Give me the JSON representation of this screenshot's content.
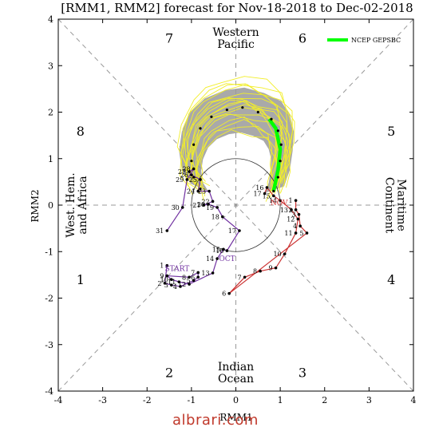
{
  "chart_data": {
    "type": "scatter",
    "title": "[RMM1, RMM2] forecast for Nov-18-2018 to Dec-02-2018",
    "xlabel": "RMM1",
    "ylabel": "RMM2",
    "xlim": [
      -4,
      4
    ],
    "ylim": [
      -4,
      4
    ],
    "ticks": [
      "-4",
      "-3",
      "-2",
      "-1",
      "0",
      "1",
      "2",
      "3",
      "4"
    ],
    "grid": false,
    "legend": {
      "position": "top-right",
      "label": "NCEP GEPSBC",
      "color": "#00ff00"
    },
    "phase_numbers": [
      {
        "label": "1",
        "x": -3.5,
        "y": -1.6
      },
      {
        "label": "2",
        "x": -1.5,
        "y": -3.6
      },
      {
        "label": "3",
        "x": 1.5,
        "y": -3.6
      },
      {
        "label": "4",
        "x": 3.5,
        "y": -1.6
      },
      {
        "label": "5",
        "x": 3.5,
        "y": 1.6
      },
      {
        "label": "6",
        "x": 1.5,
        "y": 3.6
      },
      {
        "label": "7",
        "x": -1.5,
        "y": 3.6
      },
      {
        "label": "8",
        "x": -3.5,
        "y": 1.6
      }
    ],
    "region_labels": [
      {
        "lines": [
          "Western",
          "Pacific"
        ],
        "x": 0,
        "y": 3.6,
        "rotate": 0
      },
      {
        "lines": [
          "Indian",
          "Ocean"
        ],
        "x": 0,
        "y": -3.6,
        "rotate": 0
      },
      {
        "lines": [
          "West. Hem.",
          "and Africa"
        ],
        "x": -3.6,
        "y": 0,
        "rotate": -90
      },
      {
        "lines": [
          "Maritime",
          "Continent"
        ],
        "x": 3.6,
        "y": 0,
        "rotate": 90
      }
    ],
    "month_labels": [
      {
        "label": "START",
        "x": -1.6,
        "y": -1.42,
        "color": "#7030a0"
      },
      {
        "label": "OCT",
        "x": -0.38,
        "y": -1.2,
        "color": "#7030a0"
      },
      {
        "label": "NOV",
        "x": 0.78,
        "y": 0.0,
        "color": "#cc3333"
      }
    ],
    "series": [
      {
        "name": "October observed",
        "color": "#7030a0",
        "points": [
          {
            "day": "1",
            "x": -1.55,
            "y": -1.3
          },
          {
            "day": "2",
            "x": -1.6,
            "y": -1.68
          },
          {
            "day": "3",
            "x": -1.45,
            "y": -1.72
          },
          {
            "day": "4",
            "x": -1.25,
            "y": -1.75
          },
          {
            "day": "5",
            "x": -0.95,
            "y": -1.62
          },
          {
            "day": "6",
            "x": -0.85,
            "y": -1.55
          },
          {
            "day": "7",
            "x": -0.85,
            "y": -1.45
          },
          {
            "day": "8",
            "x": -1.05,
            "y": -1.55
          },
          {
            "day": "9",
            "x": -1.55,
            "y": -1.52
          },
          {
            "day": "10",
            "x": -1.45,
            "y": -1.6
          },
          {
            "day": "11",
            "x": -1.28,
            "y": -1.65
          },
          {
            "day": "12",
            "x": -1.05,
            "y": -1.7
          },
          {
            "day": "13",
            "x": -0.52,
            "y": -1.46
          },
          {
            "day": "14",
            "x": -0.42,
            "y": -1.15
          },
          {
            "day": "15",
            "x": -0.28,
            "y": -0.95
          },
          {
            "day": "16",
            "x": -0.2,
            "y": -0.98
          },
          {
            "day": "17",
            "x": 0.08,
            "y": -0.55
          },
          {
            "day": "18",
            "x": -0.3,
            "y": -0.25
          },
          {
            "day": "19",
            "x": -0.42,
            "y": -0.05
          },
          {
            "day": "20",
            "x": -0.62,
            "y": 0.02
          },
          {
            "day": "21",
            "x": -0.72,
            "y": 0.0
          },
          {
            "day": "22",
            "x": -0.52,
            "y": 0.08
          },
          {
            "day": "23",
            "x": -0.6,
            "y": 0.3
          },
          {
            "day": "24",
            "x": -0.85,
            "y": 0.3
          },
          {
            "day": "25",
            "x": -0.8,
            "y": 0.55
          },
          {
            "day": "26",
            "x": -1.0,
            "y": 0.65
          },
          {
            "day": "27",
            "x": -1.05,
            "y": 0.72
          },
          {
            "day": "28",
            "x": -0.95,
            "y": 0.78
          },
          {
            "day": "29",
            "x": -1.1,
            "y": 0.55
          },
          {
            "day": "30",
            "x": -1.2,
            "y": -0.05
          },
          {
            "day": "31",
            "x": -1.55,
            "y": -0.55
          }
        ]
      },
      {
        "name": "November observed",
        "color": "#cc3333",
        "points": [
          {
            "day": "1",
            "x": 1.35,
            "y": 0.1
          },
          {
            "day": "2",
            "x": 1.35,
            "y": -0.1
          },
          {
            "day": "3",
            "x": 1.42,
            "y": -0.2
          },
          {
            "day": "4",
            "x": 1.45,
            "y": -0.45
          },
          {
            "day": "5",
            "x": 1.6,
            "y": -0.6
          },
          {
            "day": "6",
            "x": -0.15,
            "y": -1.9
          },
          {
            "day": "7",
            "x": 0.2,
            "y": -1.55
          },
          {
            "day": "8",
            "x": 0.55,
            "y": -1.42
          },
          {
            "day": "9",
            "x": 0.9,
            "y": -1.35
          },
          {
            "day": "10",
            "x": 1.1,
            "y": -1.05
          },
          {
            "day": "11",
            "x": 1.35,
            "y": -0.6
          },
          {
            "day": "12",
            "x": 1.4,
            "y": -0.3
          },
          {
            "day": "13",
            "x": 1.25,
            "y": -0.1
          },
          {
            "day": "14",
            "x": 1.0,
            "y": 0.1
          },
          {
            "day": "15",
            "x": 0.85,
            "y": 0.2
          },
          {
            "day": "16",
            "x": 0.7,
            "y": 0.38
          },
          {
            "day": "17",
            "x": 0.65,
            "y": 0.25
          }
        ]
      }
    ],
    "ensemble_mean": {
      "name": "NCEP GEPSBC",
      "color": "#00ff00",
      "points": [
        {
          "x": 0.85,
          "y": 0.3
        },
        {
          "x": 0.95,
          "y": 0.75
        },
        {
          "x": 1.0,
          "y": 1.2
        },
        {
          "x": 0.9,
          "y": 1.65
        },
        {
          "x": 0.75,
          "y": 1.85
        }
      ]
    },
    "forecast_days": [
      {
        "x": 0.85,
        "y": 0.3
      },
      {
        "x": 0.95,
        "y": 0.6
      },
      {
        "x": 1.0,
        "y": 0.95
      },
      {
        "x": 1.02,
        "y": 1.3
      },
      {
        "x": 0.95,
        "y": 1.6
      },
      {
        "x": 0.8,
        "y": 1.85
      },
      {
        "x": 0.5,
        "y": 2.0
      },
      {
        "x": 0.15,
        "y": 2.1
      },
      {
        "x": -0.2,
        "y": 2.05
      },
      {
        "x": -0.55,
        "y": 1.9
      },
      {
        "x": -0.8,
        "y": 1.65
      },
      {
        "x": -0.95,
        "y": 1.3
      },
      {
        "x": -1.0,
        "y": 0.95
      },
      {
        "x": -0.95,
        "y": 0.6
      },
      {
        "x": -0.8,
        "y": 0.35
      }
    ]
  },
  "watermark": "albrari.com"
}
